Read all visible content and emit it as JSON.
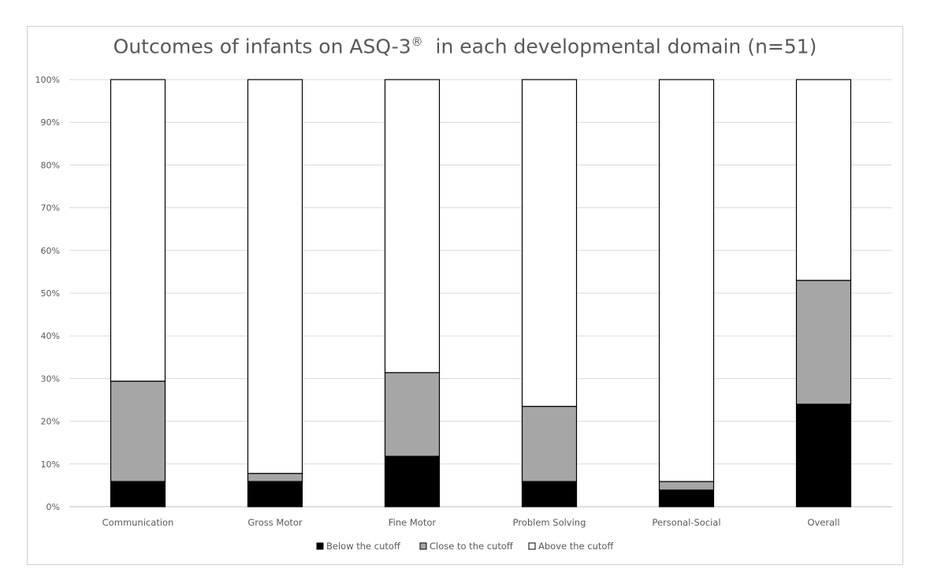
{
  "chart_data": {
    "type": "bar",
    "stacked": true,
    "percent": true,
    "title_main": "Outcomes of infants on ASQ-3",
    "title_mark": "®",
    "title_rest": "  in each developmental domain (n=51)",
    "categories": [
      "Communication",
      "Gross Motor",
      "Fine Motor",
      "Problem Solving",
      "Personal-Social",
      "Overall"
    ],
    "series": [
      {
        "name": "Below the cutoff",
        "color": "#000000",
        "values": [
          5.9,
          5.9,
          11.8,
          5.9,
          3.9,
          24.0
        ]
      },
      {
        "name": "Close to the cutoff",
        "color": "#a6a6a6",
        "values": [
          23.5,
          1.9,
          19.6,
          17.6,
          2.0,
          29.0
        ]
      },
      {
        "name": "Above the cutoff",
        "color": "#ffffff",
        "values": [
          70.6,
          92.2,
          68.6,
          76.5,
          94.1,
          47.0
        ]
      }
    ],
    "ylim": [
      0,
      100
    ],
    "yticks": [
      "0%",
      "10%",
      "20%",
      "30%",
      "40%",
      "50%",
      "60%",
      "70%",
      "80%",
      "90%",
      "100%"
    ],
    "grid": true,
    "legend_position": "bottom"
  }
}
